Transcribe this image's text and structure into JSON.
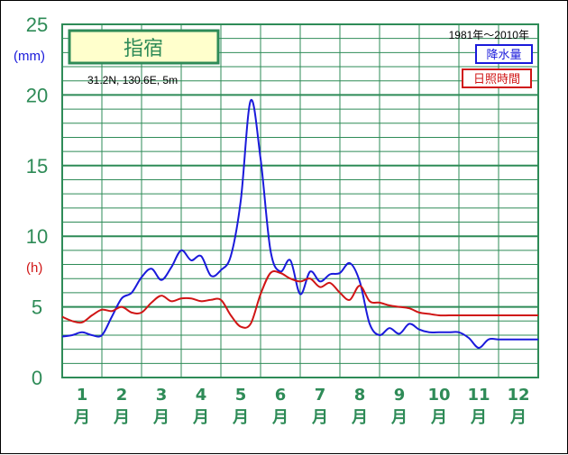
{
  "chart_data": {
    "type": "line",
    "title": "指宿",
    "location": "31.2N, 130.6E, 5m",
    "period": "1981年～2010年",
    "y_left_unit": "(mm)",
    "y_right_unit": "(h)",
    "ylim": [
      0,
      25
    ],
    "yticks": [
      "0",
      "5",
      "10",
      "15",
      "20",
      "25"
    ],
    "categories": [
      "1",
      "2",
      "3",
      "4",
      "5",
      "6",
      "7",
      "8",
      "9",
      "10",
      "11",
      "12"
    ],
    "month_suffix": "月",
    "grid": true,
    "colors": {
      "grid": "#2e8b57",
      "rain": "#1a1adb",
      "sun": "#d01515",
      "title_bg": "#ffffcc"
    },
    "series": [
      {
        "name": "降水量",
        "unit": "mm",
        "x": [
          0.0,
          0.25,
          0.5,
          0.75,
          1.0,
          1.25,
          1.5,
          1.75,
          2.0,
          2.25,
          2.5,
          2.75,
          3.0,
          3.25,
          3.5,
          3.75,
          4.0,
          4.25,
          4.5,
          4.75,
          5.0,
          5.25,
          5.5,
          5.75,
          6.0,
          6.25,
          6.5,
          6.75,
          7.0,
          7.25,
          7.5,
          7.75,
          8.0,
          8.25,
          8.5,
          8.75,
          9.0,
          9.25,
          9.5,
          9.75,
          10.0,
          10.25,
          10.5,
          10.75,
          11.0,
          11.25,
          11.5,
          11.75,
          12.0
        ],
        "values": [
          2.9,
          3.0,
          3.2,
          3.0,
          3.0,
          4.3,
          5.6,
          6.0,
          7.1,
          7.7,
          6.9,
          7.8,
          9.0,
          8.3,
          8.6,
          7.2,
          7.6,
          8.6,
          12.5,
          19.6,
          15.5,
          9.0,
          7.5,
          8.3,
          5.9,
          7.5,
          6.8,
          7.3,
          7.4,
          8.1,
          6.8,
          3.8,
          3.0,
          3.5,
          3.1,
          3.8,
          3.4,
          3.2,
          3.2,
          3.2,
          3.2,
          2.8,
          2.1,
          2.7,
          2.7,
          2.7,
          2.7,
          2.7,
          2.7
        ],
        "values_note": "monthly curve read from 0 to 12 months"
      },
      {
        "name": "日照時間",
        "unit": "h",
        "x": [
          0.0,
          0.25,
          0.5,
          0.75,
          1.0,
          1.25,
          1.5,
          1.75,
          2.0,
          2.25,
          2.5,
          2.75,
          3.0,
          3.25,
          3.5,
          3.75,
          4.0,
          4.25,
          4.5,
          4.75,
          5.0,
          5.25,
          5.5,
          5.75,
          6.0,
          6.25,
          6.5,
          6.75,
          7.0,
          7.25,
          7.5,
          7.75,
          8.0,
          8.25,
          8.5,
          8.75,
          9.0,
          9.25,
          9.5,
          9.75,
          10.0,
          10.25,
          10.5,
          10.75,
          11.0,
          11.25,
          11.5,
          11.75,
          12.0
        ],
        "values": [
          4.3,
          4.0,
          3.9,
          4.4,
          4.8,
          4.7,
          5.0,
          4.6,
          4.6,
          5.3,
          5.8,
          5.4,
          5.6,
          5.6,
          5.4,
          5.5,
          5.5,
          4.4,
          3.6,
          3.8,
          5.9,
          7.4,
          7.4,
          7.0,
          6.8,
          7.0,
          6.4,
          6.7,
          6.0,
          5.5,
          6.5,
          5.4,
          5.3,
          5.1,
          5.0,
          4.9,
          4.6,
          4.5,
          4.4,
          4.4,
          4.4,
          4.4,
          4.4,
          4.4,
          4.4,
          4.4,
          4.4,
          4.4,
          4.4
        ]
      }
    ]
  }
}
